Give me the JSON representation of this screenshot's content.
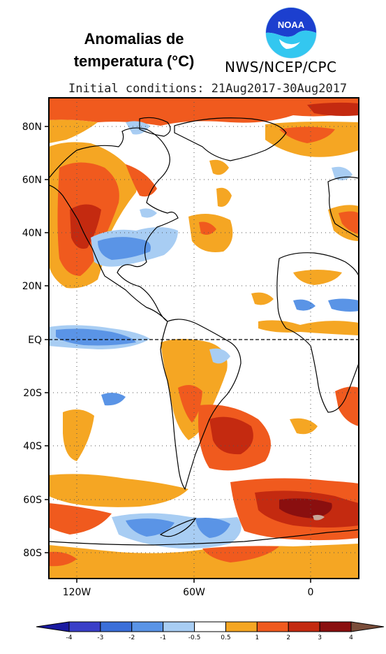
{
  "header": {
    "title_line1": "Anomalias de",
    "title_line2": "temperatura (°C)",
    "agency": "NWS/NCEP/CPC",
    "initial_conditions": "Initial conditions: 21Aug2017-30Aug2017",
    "logo_text": "NOAA"
  },
  "map": {
    "lat_labels": [
      "80N",
      "60N",
      "40N",
      "20N",
      "EQ",
      "20S",
      "40S",
      "60S",
      "80S"
    ],
    "lon_labels": [
      "120W",
      "60W",
      "0"
    ],
    "equator_line": "dashed"
  },
  "colorbar": {
    "ticks": [
      "-4",
      "-3",
      "-2",
      "-1",
      "-0.5",
      "0.5",
      "1",
      "2",
      "3",
      "4"
    ],
    "colors": [
      "#1a1aa0",
      "#3a3fc8",
      "#3b6fd9",
      "#5a94e6",
      "#a8cdf3",
      "#ffffff",
      "#f5a623",
      "#f05a1e",
      "#c42a10",
      "#8a0f0f",
      "#c8a79a",
      "#7a4d3a"
    ]
  },
  "palette": {
    "light_blue": "#a8cdf3",
    "blue": "#5a94e6",
    "orange": "#f5a623",
    "red_orange": "#f05a1e",
    "red": "#c42a10",
    "dark_red": "#8a0f0f",
    "pink_grey": "#c8a79a"
  }
}
